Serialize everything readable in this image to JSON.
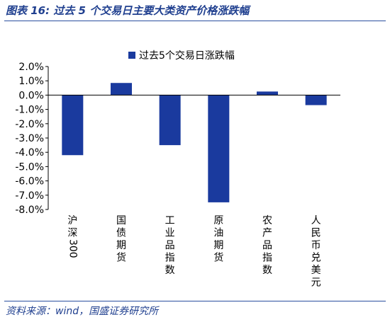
{
  "figure": {
    "title": "图表 16:  过去 5 个交易日主要大类资产价格涨跌幅",
    "source": "资料来源：wind，国盛证券研究所"
  },
  "chart_data": {
    "type": "bar",
    "categories": [
      "沪深300",
      "国债期货",
      "工业品指数",
      "原油期货",
      "农产品指数",
      "人民币兑美元"
    ],
    "series": [
      {
        "name": "过去5个交易日涨跌幅",
        "values": [
          -4.2,
          0.85,
          -3.5,
          -7.5,
          0.25,
          -0.7
        ]
      }
    ],
    "ylim": [
      -8.0,
      2.0
    ],
    "yticks": [
      "2.0%",
      "1.0%",
      "0.0%",
      "-1.0%",
      "-2.0%",
      "-3.0%",
      "-4.0%",
      "-5.0%",
      "-6.0%",
      "-7.0%",
      "-8.0%"
    ],
    "legend_position": "top-center",
    "grid": false,
    "colors": {
      "bar": "#1a3a9e",
      "text": "#000000",
      "title": "#1f3f8f"
    }
  }
}
